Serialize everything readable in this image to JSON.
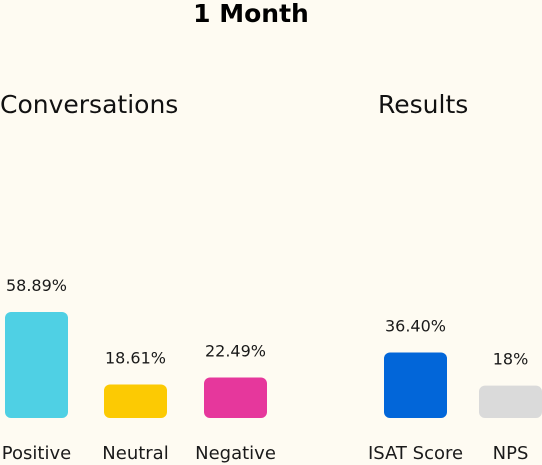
{
  "title": "1 Month",
  "chart_data": [
    {
      "type": "bar",
      "title": "Conversations",
      "categories": [
        "Positive",
        "Neutral",
        "Negative"
      ],
      "values": [
        58.89,
        18.61,
        22.49
      ],
      "value_labels": [
        "58.89%",
        "18.61%",
        "22.49%"
      ],
      "colors": [
        "#4fd0e4",
        "#fcca03",
        "#e6379c"
      ],
      "ylim": [
        0,
        100
      ],
      "grid": false
    },
    {
      "type": "bar",
      "title": "Results",
      "categories": [
        "ISAT Score",
        "NPS"
      ],
      "values": [
        36.4,
        18
      ],
      "value_labels": [
        "36.40%",
        "18%"
      ],
      "colors": [
        "#0266d9",
        "#dadada"
      ],
      "ylim": [
        0,
        100
      ],
      "grid": false
    }
  ]
}
